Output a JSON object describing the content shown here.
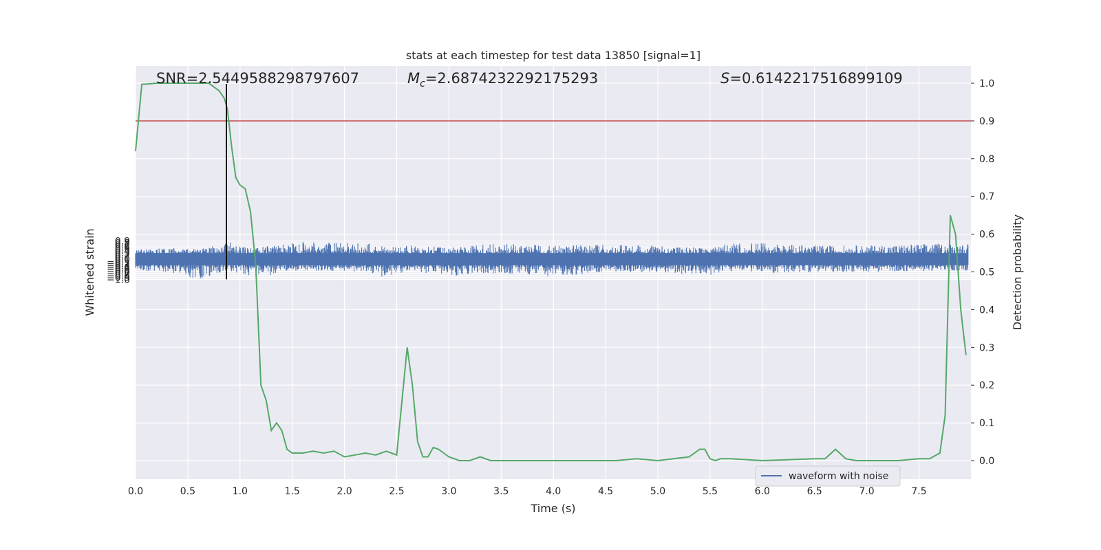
{
  "chart_data": {
    "type": "line",
    "title": "stats at each timestep for test data 13850 [signal=1]",
    "xlabel": "Time (s)",
    "ylabel": "Whitened strain",
    "y2label": "Detection probability",
    "xlim": [
      0.0,
      8.0
    ],
    "ylim": [
      -1.09,
      0.95
    ],
    "y2lim": [
      -0.05,
      1.05
    ],
    "x_ticks": [
      "0.0",
      "0.5",
      "1.0",
      "1.5",
      "2.0",
      "2.5",
      "3.0",
      "3.5",
      "4.0",
      "4.5",
      "5.0",
      "5.5",
      "6.0",
      "6.5",
      "7.0",
      "7.5"
    ],
    "y_ticks": [
      "0.9",
      "0.8",
      "0.7",
      "0.6",
      "0.5",
      "0.4",
      "0.3",
      "0.2",
      "0.1",
      "0.0",
      "−0.1",
      "−0.2",
      "−0.3",
      "−0.4",
      "−0.5",
      "−0.6",
      "−0.7",
      "−0.8",
      "−0.9",
      "−1.0"
    ],
    "y2_ticks": [
      "1.0",
      "0.9",
      "0.8",
      "0.7",
      "0.6",
      "0.5",
      "0.4",
      "0.3",
      "0.2",
      "0.1",
      "0.0"
    ],
    "grid": true,
    "legend_position": "lower-right",
    "annotations": {
      "snr": "SNR=2.5449588298797607",
      "mc_symbol": "M",
      "mc_sub": "c",
      "mc_value": "=2.6874232292175293",
      "s_symbol": "S",
      "s_value": "=0.6142217516899109"
    },
    "threshold_y2": 0.9,
    "marker_x": 0.87,
    "series": [
      {
        "name": "waveform with noise",
        "color": "#4c72b0",
        "axis": "left",
        "description_envelope": [
          [
            0.0,
            0.48,
            -0.53
          ],
          [
            0.3,
            0.56,
            -0.68
          ],
          [
            0.6,
            0.5,
            -1.0
          ],
          [
            0.87,
            0.88,
            -0.62
          ],
          [
            1.05,
            0.6,
            -0.8
          ],
          [
            1.15,
            0.55,
            -0.9
          ],
          [
            1.58,
            0.87,
            -0.55
          ],
          [
            1.77,
            0.86,
            -0.58
          ],
          [
            2.2,
            0.81,
            -0.62
          ],
          [
            2.4,
            0.58,
            -0.93
          ],
          [
            2.6,
            0.68,
            -0.57
          ],
          [
            3.0,
            0.59,
            -0.85
          ],
          [
            3.5,
            0.77,
            -0.68
          ],
          [
            4.1,
            0.68,
            -0.9
          ],
          [
            4.5,
            0.71,
            -0.6
          ],
          [
            5.0,
            0.67,
            -0.65
          ],
          [
            5.5,
            0.55,
            -0.81
          ],
          [
            5.75,
            0.87,
            -0.58
          ],
          [
            6.1,
            0.76,
            -0.69
          ],
          [
            6.5,
            0.68,
            -0.64
          ],
          [
            7.0,
            0.68,
            -0.63
          ],
          [
            7.5,
            0.76,
            -0.6
          ],
          [
            7.9,
            0.78,
            -0.58
          ]
        ]
      },
      {
        "name": "",
        "color": "#55a868",
        "axis": "right",
        "x": [
          0.0,
          0.06,
          0.12,
          0.2,
          0.3,
          0.4,
          0.5,
          0.6,
          0.7,
          0.8,
          0.85,
          0.88,
          0.92,
          0.96,
          1.0,
          1.05,
          1.1,
          1.15,
          1.2,
          1.25,
          1.3,
          1.35,
          1.4,
          1.45,
          1.5,
          1.6,
          1.7,
          1.8,
          1.9,
          2.0,
          2.1,
          2.2,
          2.3,
          2.35,
          2.4,
          2.45,
          2.5,
          2.6,
          2.65,
          2.7,
          2.75,
          2.8,
          2.85,
          2.9,
          3.0,
          3.1,
          3.2,
          3.3,
          3.4,
          3.5,
          3.7,
          4.0,
          4.3,
          4.6,
          4.8,
          5.0,
          5.3,
          5.4,
          5.45,
          5.5,
          5.55,
          5.6,
          5.7,
          6.0,
          6.5,
          6.6,
          6.7,
          6.8,
          6.9,
          7.0,
          7.3,
          7.5,
          7.6,
          7.7,
          7.75,
          7.8,
          7.85,
          7.9,
          7.95
        ],
        "y": [
          0.82,
          0.997,
          0.998,
          1.0,
          1.0,
          1.0,
          1.0,
          1.0,
          1.0,
          0.98,
          0.96,
          0.93,
          0.83,
          0.75,
          0.73,
          0.72,
          0.66,
          0.52,
          0.2,
          0.16,
          0.08,
          0.1,
          0.08,
          0.03,
          0.02,
          0.02,
          0.025,
          0.02,
          0.025,
          0.01,
          0.015,
          0.02,
          0.015,
          0.02,
          0.025,
          0.02,
          0.015,
          0.3,
          0.2,
          0.05,
          0.01,
          0.01,
          0.035,
          0.03,
          0.01,
          0.0,
          0.0,
          0.01,
          0.0,
          0.0,
          0.0,
          0.0,
          0.0,
          0.0,
          0.005,
          0.0,
          0.01,
          0.03,
          0.03,
          0.005,
          0.0,
          0.005,
          0.005,
          0.0,
          0.005,
          0.005,
          0.03,
          0.005,
          0.0,
          0.0,
          0.0,
          0.005,
          0.005,
          0.02,
          0.12,
          0.65,
          0.6,
          0.4,
          0.28
        ]
      }
    ]
  }
}
